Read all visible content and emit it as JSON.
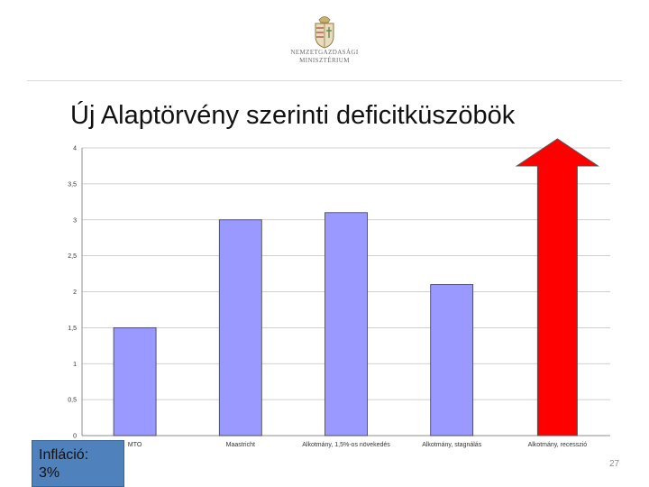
{
  "logo": {
    "line1": "NEMZETGAZDASÁGI",
    "line2": "MINISZTÉRIUM",
    "emblem": "hungarian-coat-of-arms"
  },
  "title": "Új Alaptörvény szerinti deficitküszöbök",
  "inflation_box": {
    "line1": "Infláció:",
    "line2": "3%",
    "color": "#4f81bd"
  },
  "slide_number": "27",
  "colors": {
    "bar": "#9999ff",
    "bar_border": "#3b3b3b",
    "arrow": "#ff0000",
    "grid": "#c0c0c0"
  },
  "chart_data": {
    "type": "bar",
    "title": "",
    "xlabel": "",
    "ylabel": "",
    "categories": [
      "MTO",
      "Maastricht",
      "Alkotmány, 1,5%-os növekedés",
      "Alkotmány, stagnálás",
      "Alkotmány, recesszió"
    ],
    "values": [
      1.5,
      3.0,
      3.1,
      2.1,
      null
    ],
    "ylim": [
      0,
      4
    ],
    "yticks": [
      "0",
      "0,5",
      "1",
      "1,5",
      "2",
      "2,5",
      "3",
      "3,5",
      "4"
    ],
    "grid": true,
    "legend": "none",
    "annotation": {
      "category": "Alkotmány, recesszió",
      "shape": "up-arrow",
      "meaning": "unbounded"
    }
  }
}
